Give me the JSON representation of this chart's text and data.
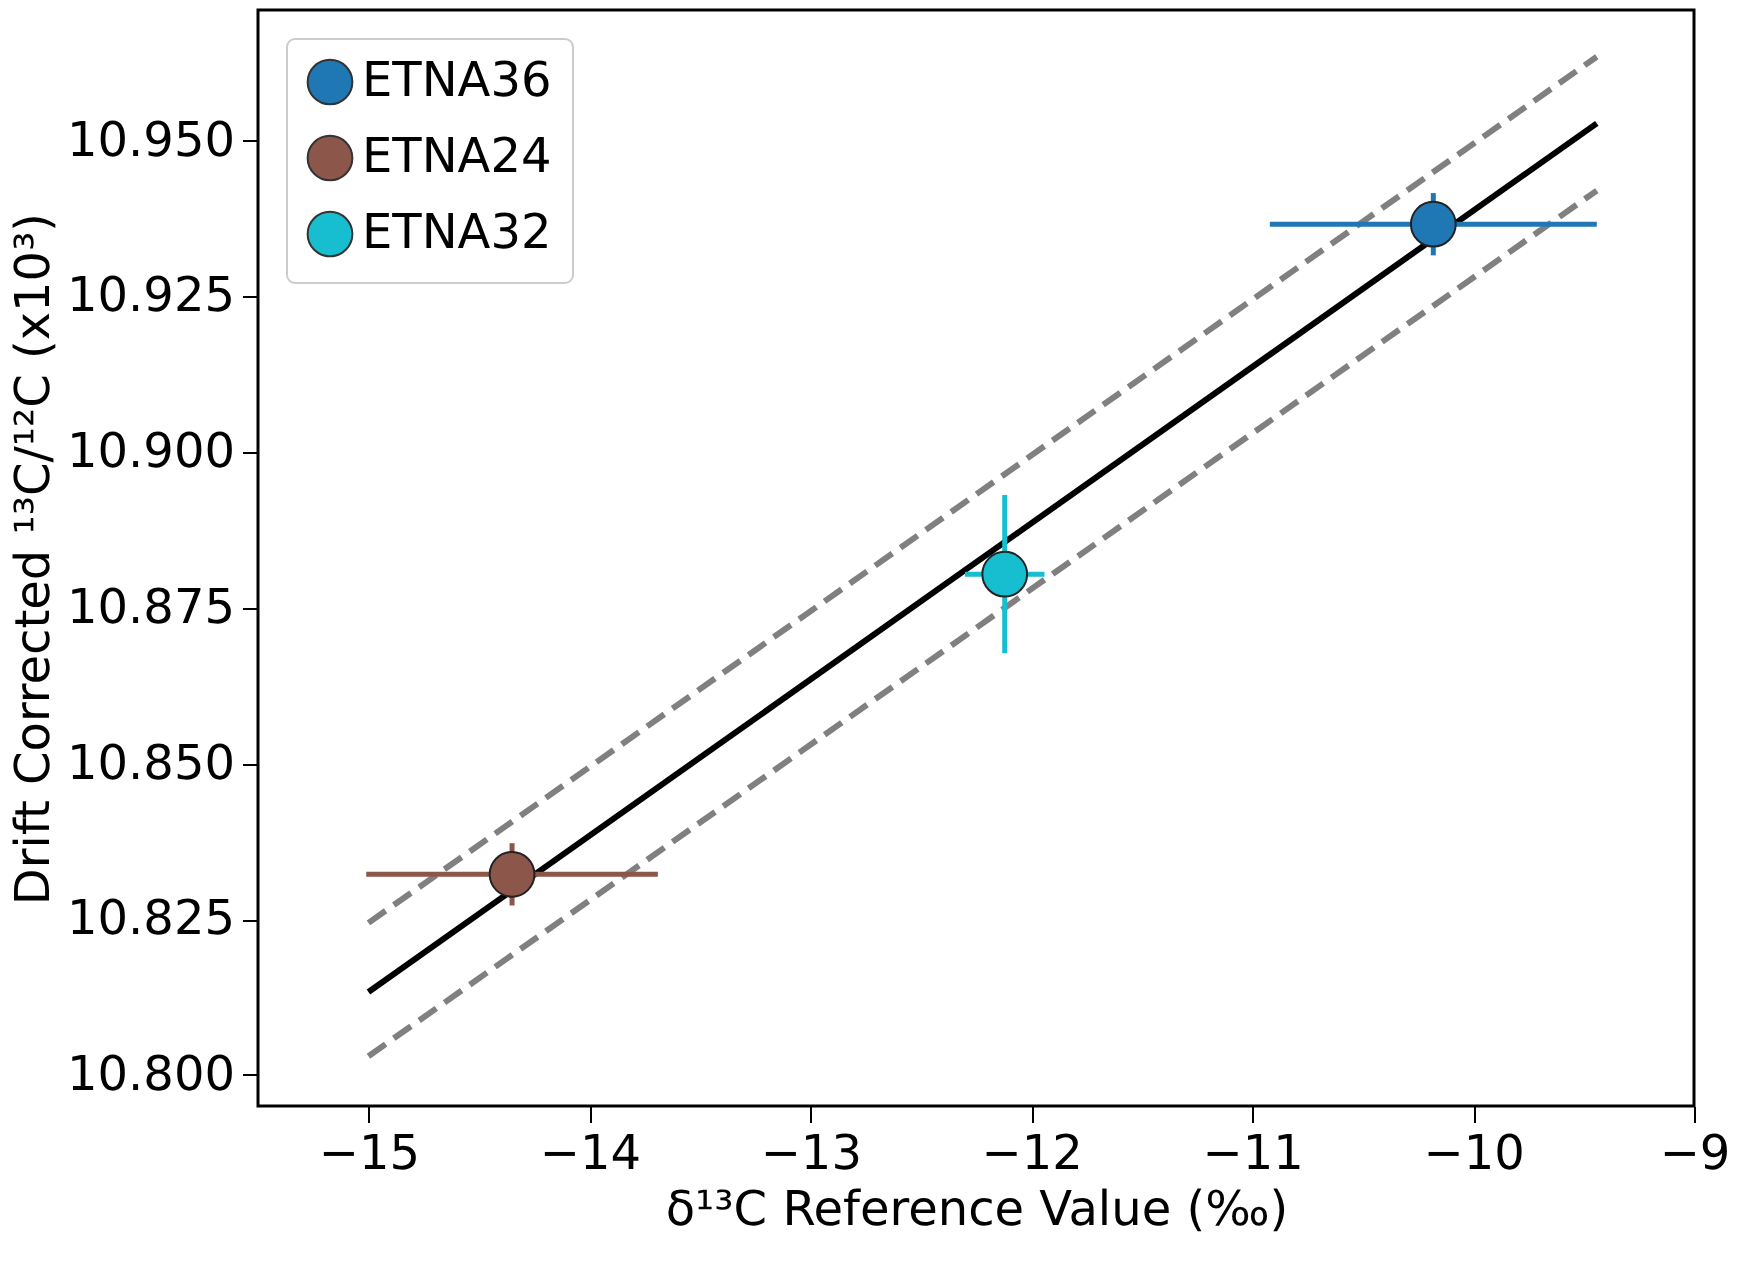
{
  "chart_data": {
    "type": "scatter",
    "xlabel": "δ¹³C Reference Value (‰)",
    "ylabel": "Drift Corrected ¹³C/¹²C (x10³)",
    "xlim": [
      -15.5,
      -9
    ],
    "xticks": [
      -15,
      -14,
      -13,
      -12,
      -11,
      -10,
      -9
    ],
    "ylim": [
      10.795,
      10.971
    ],
    "yticks": [
      {
        "value": 10.8,
        "label": "10.800"
      },
      10.825,
      {
        "value": 10.85,
        "label": "10.850"
      },
      10.875,
      {
        "value": 10.9,
        "label": "10.900"
      },
      10.925,
      {
        "value": 10.95,
        "label": "10.950"
      }
    ],
    "grid": false,
    "legend": "top left",
    "marker": "circle",
    "series": [
      {
        "name": "ETNA36",
        "color": "#1f77b4",
        "x": [
          -10.18
        ],
        "values": [
          10.9366
        ],
        "xerrors": [
          0.74
        ],
        "errors": [
          0.005
        ]
      },
      {
        "name": "ETNA24",
        "color": "#8c564b",
        "x": [
          -14.35
        ],
        "values": [
          10.8322
        ],
        "xerrors": [
          0.66
        ],
        "errors": [
          0.005
        ]
      },
      {
        "name": "ETNA32",
        "color": "#17becf",
        "x": [
          -12.12
        ],
        "values": [
          10.8804
        ],
        "xerrors": [
          0.18
        ],
        "errors": [
          0.0127
        ]
      },
      {
        "color": "#000000",
        "type": "line",
        "line_style": "solid",
        "marker": "none",
        "x": [
          -15,
          -9.44
        ],
        "values": [
          10.8133,
          10.9528
        ]
      },
      {
        "color": "#808080",
        "type": "line",
        "line_style": "dashed",
        "marker": "none",
        "x": [
          -15,
          -9.44
        ],
        "values": [
          10.8244,
          10.9635
        ]
      },
      {
        "color": "#808080",
        "type": "line",
        "line_style": "dashed",
        "marker": "none",
        "x": [
          -15,
          -9.44
        ],
        "values": [
          10.803,
          10.942
        ]
      }
    ]
  }
}
